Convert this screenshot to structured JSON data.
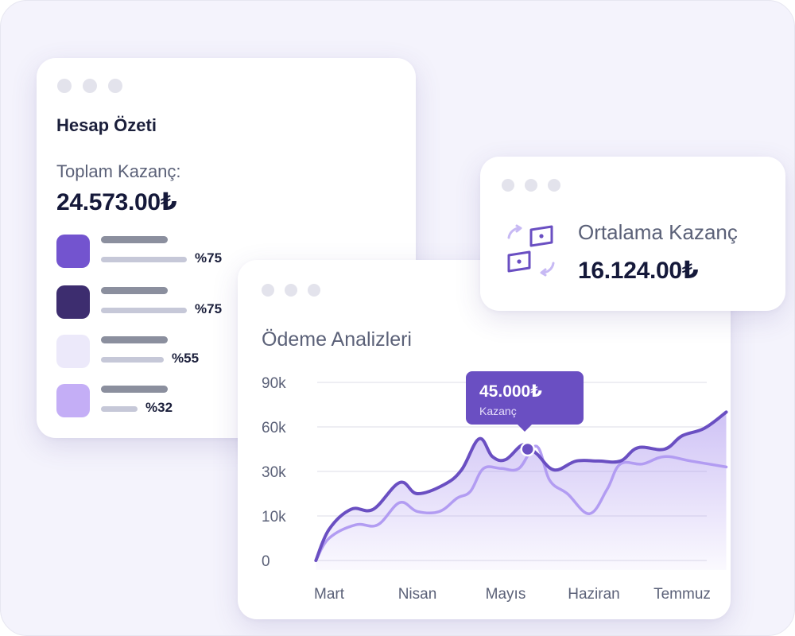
{
  "summary": {
    "title": "Hesap Özeti",
    "total_label": "Toplam Kazanç:",
    "total_value": "24.573.00₺",
    "items": [
      {
        "percent": "%75",
        "color": "#7354cf",
        "share": 0.75
      },
      {
        "percent": "%75",
        "color": "#3d2d6f",
        "share": 0.75
      },
      {
        "percent": "%55",
        "color": "#ece9fa",
        "share": 0.55
      },
      {
        "percent": "%32",
        "color": "#c4aef6",
        "share": 0.32
      }
    ]
  },
  "average": {
    "label": "Ortalama Kazanç",
    "value": "16.124.00₺",
    "icon": "currency-exchange-icon"
  },
  "chart": {
    "title": "Ödeme Analizleri",
    "tooltip": {
      "value": "45.000₺",
      "label": "Kazanç"
    }
  },
  "colors": {
    "accent": "#6a4fc2",
    "series_primary": "#6a4fc2",
    "series_secondary": "#b29cf2"
  },
  "chart_data": {
    "type": "area",
    "categories": [
      "Mart",
      "Nisan",
      "Mayıs",
      "Haziran",
      "Temmuz"
    ],
    "y_ticks": [
      "90k",
      "60k",
      "30k",
      "10k",
      "0"
    ],
    "y_tick_values": [
      90000,
      60000,
      30000,
      10000,
      0
    ],
    "ylim": [
      0,
      90000
    ],
    "grid": true,
    "highlight": {
      "x": 2.25,
      "y": 45000
    },
    "series": [
      {
        "x": [
          -0.15,
          0.0,
          0.25,
          0.5,
          0.8,
          1.0,
          1.3,
          1.5,
          1.7,
          1.85,
          2.0,
          2.2,
          2.35,
          2.55,
          2.8,
          3.05,
          3.3,
          3.5,
          3.8,
          4.0,
          4.25,
          4.5
        ],
        "y": [
          0,
          7000,
          13000,
          13000,
          25000,
          20000,
          24000,
          31000,
          52000,
          40000,
          38000,
          48000,
          42000,
          31000,
          37000,
          37000,
          37000,
          46000,
          45000,
          54000,
          59000,
          70000
        ],
        "fill": true
      },
      {
        "x": [
          -0.15,
          0.0,
          0.3,
          0.55,
          0.8,
          1.0,
          1.25,
          1.45,
          1.6,
          1.75,
          1.95,
          2.15,
          2.35,
          2.5,
          2.7,
          2.95,
          3.15,
          3.3,
          3.55,
          3.8,
          4.1,
          4.5
        ],
        "y": [
          0,
          5000,
          8000,
          8000,
          16000,
          12000,
          12000,
          18000,
          21000,
          32000,
          32000,
          32000,
          47000,
          26000,
          20000,
          11000,
          22000,
          35000,
          35000,
          40000,
          37000,
          33000
        ],
        "fill": false
      }
    ]
  }
}
